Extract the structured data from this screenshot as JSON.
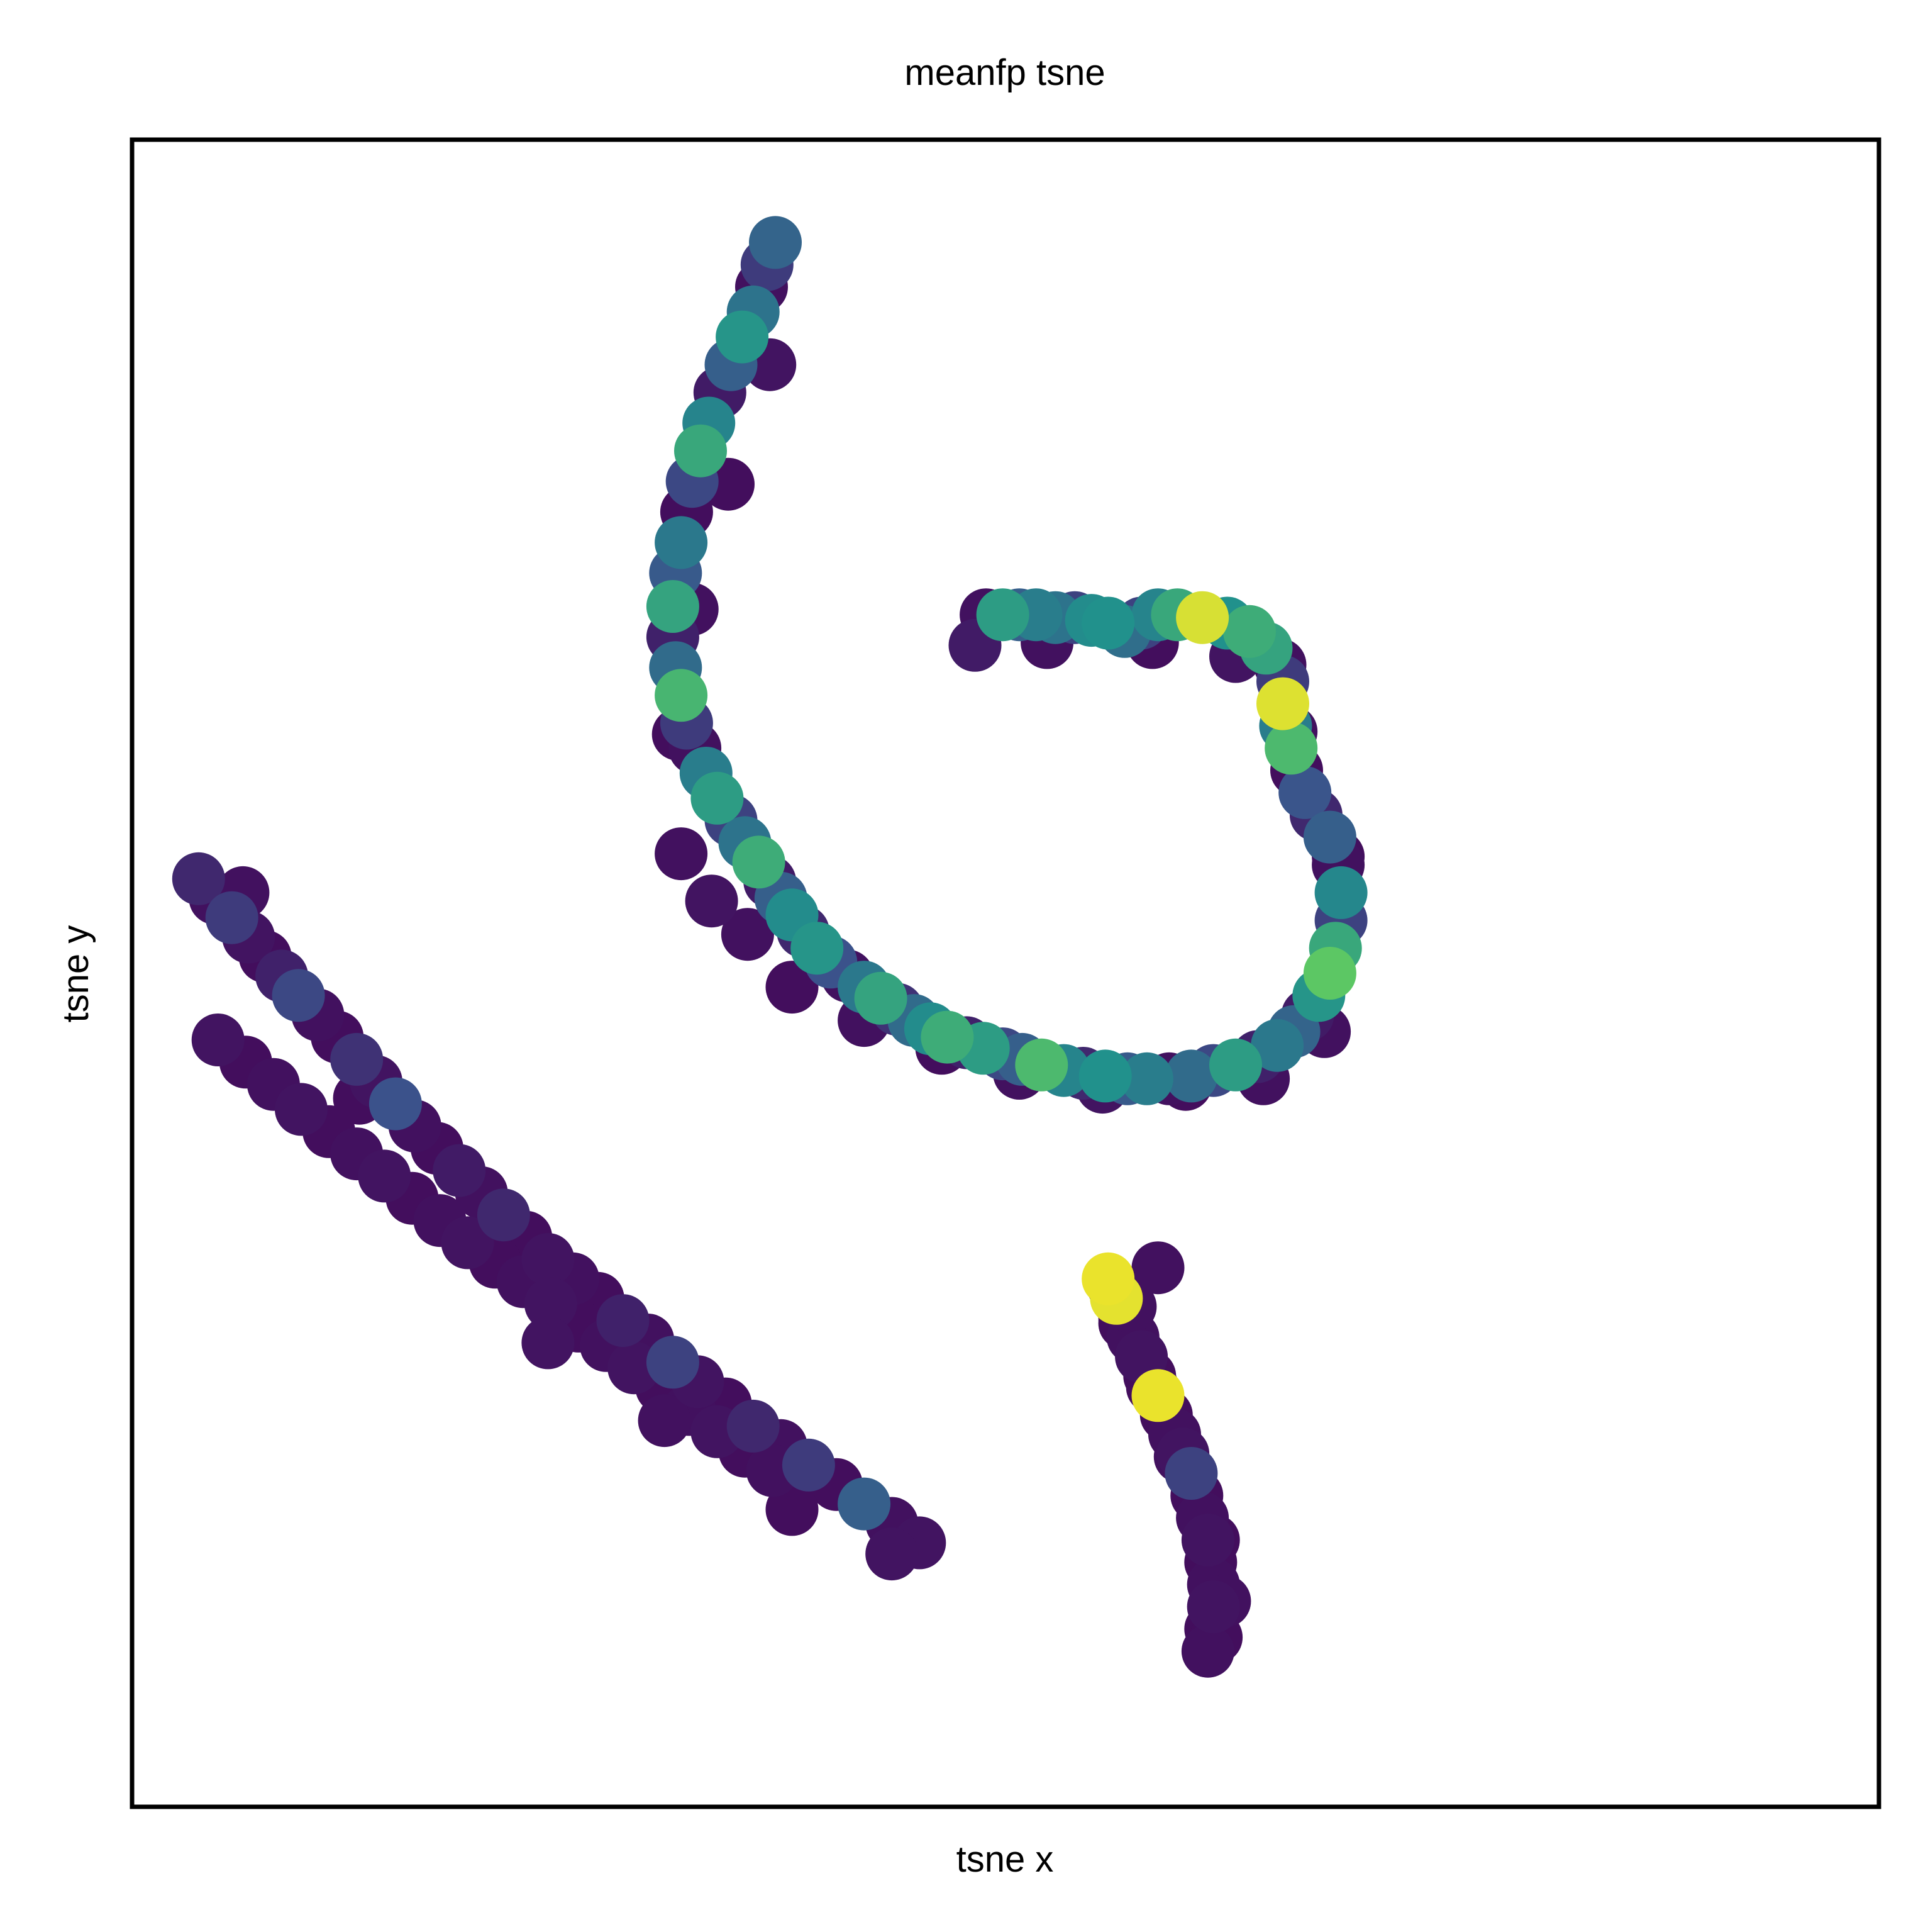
{
  "chart_data": {
    "type": "scatter",
    "title": "meanfp tsne",
    "xlabel": "tsne x",
    "ylabel": "tsne y",
    "xlim": [
      -3.1,
      3.2
    ],
    "ylim": [
      -2.95,
      3.05
    ],
    "grid": false,
    "legend": "none",
    "ticks": "hidden",
    "colormap": "viridis",
    "value_range": [
      0,
      1
    ],
    "colors": {
      "low": "#440154",
      "high": "#fde725",
      "frame": "#000000"
    },
    "series": [
      {
        "cluster": "spiral",
        "x": [
          -0.78,
          -0.81,
          -0.83,
          -0.86,
          -0.9,
          -0.94,
          -0.98,
          -1.02,
          -1.05,
          -1.08,
          -1.1,
          -1.12,
          -1.14,
          -1.15,
          -1.15,
          -1.14,
          -1.12,
          -1.1,
          -1.07,
          -1.03,
          -0.99,
          -0.94,
          -0.89,
          -0.84,
          -0.8,
          -0.76,
          -0.72,
          -0.68,
          -0.63,
          -0.58,
          -0.52,
          -0.46,
          -0.4,
          -0.34,
          -0.28,
          -0.22,
          -0.16,
          -0.09,
          -0.03,
          0.04,
          0.11,
          0.18,
          0.26,
          0.33,
          0.41,
          0.49,
          0.56,
          0.64,
          0.72,
          0.8,
          0.88,
          0.96,
          1.03,
          1.09,
          1.14,
          1.18,
          1.22,
          1.24,
          1.26,
          1.26,
          1.25,
          1.22,
          1.17,
          1.13,
          1.1,
          1.08,
          1.06,
          1.05,
          1.05,
          1.04,
          0.99,
          0.93,
          0.85,
          0.76,
          0.67,
          0.6,
          0.54,
          0.48,
          0.42,
          0.36,
          0.3,
          0.23,
          0.16,
          0.1,
          0.04,
          -0.02,
          -0.06,
          -0.8,
          -0.95,
          -1.08,
          -1.13,
          -1.12,
          -1.01,
          -0.88,
          -0.72,
          -0.46,
          -0.18,
          0.1,
          0.4,
          0.7,
          0.98,
          1.2,
          1.25,
          1.08,
          0.88,
          0.58,
          0.2
        ],
        "y": [
          2.68,
          2.6,
          2.52,
          2.43,
          2.34,
          2.24,
          2.14,
          2.03,
          1.93,
          1.82,
          1.71,
          1.6,
          1.49,
          1.37,
          1.26,
          1.15,
          1.05,
          0.95,
          0.86,
          0.77,
          0.68,
          0.6,
          0.52,
          0.45,
          0.38,
          0.32,
          0.26,
          0.2,
          0.14,
          0.09,
          0.04,
          0.0,
          -0.04,
          -0.08,
          -0.12,
          -0.15,
          -0.18,
          -0.2,
          -0.22,
          -0.24,
          -0.26,
          -0.28,
          -0.3,
          -0.31,
          -0.32,
          -0.33,
          -0.33,
          -0.33,
          -0.32,
          -0.3,
          -0.28,
          -0.25,
          -0.21,
          -0.16,
          -0.1,
          -0.03,
          0.05,
          0.14,
          0.24,
          0.34,
          0.44,
          0.54,
          0.62,
          0.7,
          0.78,
          0.86,
          0.94,
          1.02,
          1.1,
          1.16,
          1.22,
          1.28,
          1.31,
          1.33,
          1.34,
          1.34,
          1.31,
          1.28,
          1.31,
          1.32,
          1.33,
          1.33,
          1.34,
          1.34,
          1.34,
          1.34,
          1.23,
          2.24,
          1.81,
          1.36,
          0.91,
          0.48,
          0.31,
          0.19,
          0.0,
          -0.12,
          -0.22,
          -0.31,
          -0.36,
          -0.35,
          -0.33,
          -0.16,
          0.47,
          0.92,
          1.19,
          1.24,
          1.24
        ],
        "values": [
          0.32,
          0.18,
          0.05,
          0.38,
          0.52,
          0.3,
          0.08,
          0.45,
          0.6,
          0.22,
          0.04,
          0.4,
          0.28,
          0.58,
          0.1,
          0.35,
          0.66,
          0.18,
          0.05,
          0.42,
          0.55,
          0.2,
          0.38,
          0.62,
          0.08,
          0.3,
          0.48,
          0.12,
          0.52,
          0.25,
          0.05,
          0.4,
          0.58,
          0.15,
          0.35,
          0.48,
          0.62,
          0.1,
          0.55,
          0.22,
          0.3,
          0.68,
          0.45,
          0.12,
          0.5,
          0.28,
          0.42,
          0.05,
          0.35,
          0.22,
          0.55,
          0.1,
          0.4,
          0.32,
          0.08,
          0.52,
          0.74,
          0.6,
          0.2,
          0.46,
          0.05,
          0.3,
          0.12,
          0.26,
          0.04,
          0.68,
          0.42,
          0.95,
          0.18,
          0.05,
          0.58,
          0.62,
          0.5,
          0.94,
          0.6,
          0.45,
          0.2,
          0.36,
          0.5,
          0.48,
          0.2,
          0.38,
          0.42,
          0.3,
          0.55,
          0.05,
          0.08,
          0.06,
          0.04,
          0.05,
          0.04,
          0.05,
          0.06,
          0.05,
          0.04,
          0.05,
          0.04,
          0.05,
          0.06,
          0.04,
          0.05,
          0.05,
          0.04,
          0.05,
          0.06,
          0.04,
          0.05
        ]
      },
      {
        "cluster": "diagonal-band",
        "x": [
          -2.86,
          -2.8,
          -2.74,
          -2.68,
          -2.62,
          -2.56,
          -2.5,
          -2.43,
          -2.36,
          -2.29,
          -2.22,
          -2.15,
          -2.08,
          -2.0,
          -1.92,
          -1.84,
          -1.76,
          -1.68,
          -1.6,
          -1.51,
          -1.42,
          -1.33,
          -1.24,
          -1.15,
          -1.06,
          -0.96,
          -0.86,
          -0.76,
          -0.66,
          -0.56,
          -0.46,
          -0.36,
          -0.26,
          -0.79,
          -0.89,
          -0.99,
          -1.09,
          -1.19,
          -1.29,
          -1.39,
          -1.49,
          -1.59,
          -1.69,
          -1.79,
          -1.89,
          -1.99,
          -2.09,
          -2.19,
          -2.29,
          -2.39,
          -2.49,
          -2.59,
          -2.69,
          -2.79,
          -2.7,
          -2.28,
          -1.6,
          -1.18,
          -0.72,
          -0.36
        ],
        "y": [
          0.39,
          0.32,
          0.25,
          0.18,
          0.11,
          0.04,
          -0.03,
          -0.1,
          -0.18,
          -0.26,
          -0.34,
          -0.42,
          -0.5,
          -0.58,
          -0.66,
          -0.74,
          -0.82,
          -0.9,
          -0.98,
          -1.05,
          -1.12,
          -1.2,
          -1.27,
          -1.35,
          -1.42,
          -1.5,
          -1.58,
          -1.65,
          -1.72,
          -1.79,
          -1.86,
          -1.93,
          -2.0,
          -1.74,
          -1.67,
          -1.6,
          -1.52,
          -1.44,
          -1.37,
          -1.29,
          -1.22,
          -1.14,
          -1.06,
          -0.99,
          -0.92,
          -0.84,
          -0.76,
          -0.68,
          -0.6,
          -0.52,
          -0.44,
          -0.35,
          -0.27,
          -0.19,
          0.34,
          -0.4,
          -1.28,
          -1.56,
          -1.88,
          -2.04
        ],
        "values": [
          0.12,
          0.05,
          0.18,
          0.06,
          0.04,
          0.1,
          0.22,
          0.05,
          0.04,
          0.15,
          0.06,
          0.25,
          0.05,
          0.04,
          0.08,
          0.05,
          0.12,
          0.04,
          0.06,
          0.05,
          0.04,
          0.1,
          0.05,
          0.2,
          0.06,
          0.04,
          0.12,
          0.05,
          0.18,
          0.04,
          0.3,
          0.05,
          0.06,
          0.05,
          0.04,
          0.06,
          0.05,
          0.04,
          0.06,
          0.05,
          0.04,
          0.06,
          0.05,
          0.04,
          0.06,
          0.05,
          0.04,
          0.06,
          0.05,
          0.04,
          0.06,
          0.05,
          0.04,
          0.06,
          0.05,
          0.04,
          0.06,
          0.05,
          0.04,
          0.06
        ]
      },
      {
        "cluster": "small-band",
        "x": [
          0.42,
          0.45,
          0.48,
          0.51,
          0.54,
          0.57,
          0.6,
          0.63,
          0.66,
          0.69,
          0.72,
          0.74,
          0.76,
          0.78,
          0.79,
          0.8,
          0.8,
          0.79,
          0.78,
          0.44,
          0.5,
          0.58,
          0.68,
          0.8,
          0.84,
          0.81,
          0.6,
          0.48
        ],
        "y": [
          -1.05,
          -1.12,
          -1.19,
          -1.26,
          -1.33,
          -1.4,
          -1.47,
          -1.54,
          -1.61,
          -1.68,
          -1.75,
          -1.83,
          -1.91,
          -1.99,
          -2.07,
          -2.15,
          -2.23,
          -2.31,
          -2.39,
          -1.08,
          -1.15,
          -1.44,
          -1.69,
          -1.99,
          -2.21,
          -2.34,
          -1.01,
          -1.21
        ],
        "values": [
          0.97,
          0.96,
          0.04,
          0.05,
          0.06,
          0.04,
          0.97,
          0.04,
          0.05,
          0.06,
          0.2,
          0.04,
          0.05,
          0.06,
          0.04,
          0.05,
          0.06,
          0.04,
          0.05,
          0.04,
          0.05,
          0.04,
          0.05,
          0.04,
          0.05,
          0.04,
          0.05,
          0.04
        ]
      }
    ]
  }
}
